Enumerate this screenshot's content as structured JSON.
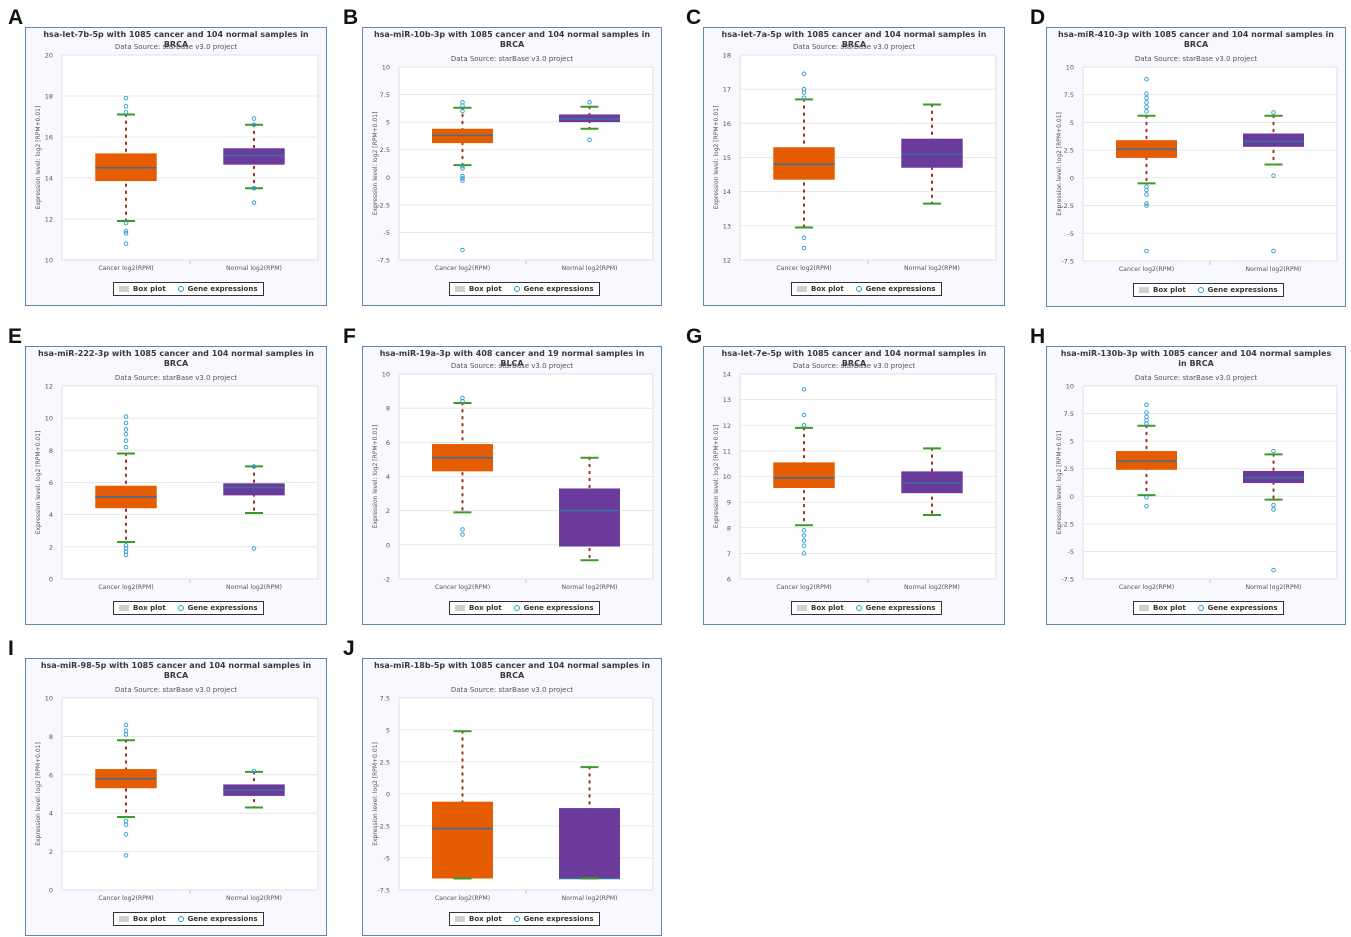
{
  "colors": {
    "cancer": "#e65c00",
    "normal": "#6a3b9c",
    "median": "#3d6d9a",
    "whisker": "#3a9a2a",
    "dots": "#a0301a",
    "points": "#2a9bd1",
    "border": "#5e86b3"
  },
  "legend": {
    "box": "Box plot",
    "points": "Gene expressions"
  },
  "chart_data": [
    {
      "letter": "A",
      "type": "box",
      "title": "hsa-let-7b-5p with 1085 cancer and 104 normal samples in BRCA",
      "subtitle": "Data Source: starBase v3.0 project",
      "ylabel": "Expression level: log2 [RPM+0.01]",
      "categories": [
        "Cancer log2(RPM)",
        "Normal log2(RPM)"
      ],
      "yticks": [
        "10",
        "12",
        "14",
        "16",
        "18",
        "20"
      ],
      "ylim": [
        10,
        20
      ],
      "boxes": [
        {
          "q1": 13.85,
          "median": 14.5,
          "q3": 15.2,
          "lower": 11.9,
          "upper": 17.1,
          "outliers": [
            10.8,
            11.3,
            11.4,
            11.8,
            17.2,
            17.5,
            17.9
          ]
        },
        {
          "q1": 14.65,
          "median": 15.1,
          "q3": 15.45,
          "lower": 13.5,
          "upper": 16.6,
          "outliers": [
            12.8,
            13.5,
            16.6,
            16.9
          ]
        }
      ]
    },
    {
      "letter": "B",
      "type": "box",
      "title": "hsa-miR-10b-3p with 1085 cancer and 104 normal samples in BRCA",
      "subtitle": "Data Source: starBase v3.0 project",
      "ylabel": "Expression level: log2 [RPM+0.01]",
      "categories": [
        "Cancer log2(RPM)",
        "Normal log2(RPM)"
      ],
      "yticks": [
        "-7.5",
        "-5",
        "-2.5",
        "0",
        "2.5",
        "5",
        "7.5",
        "10"
      ],
      "ylim": [
        -7.5,
        10
      ],
      "boxes": [
        {
          "q1": 3.1,
          "median": 3.8,
          "q3": 4.4,
          "lower": 1.1,
          "upper": 6.3,
          "outliers": [
            -6.6,
            -0.3,
            -0.1,
            0.1,
            0.8,
            1.0,
            6.0,
            6.5,
            6.8
          ]
        },
        {
          "q1": 5.0,
          "median": 5.3,
          "q3": 5.7,
          "lower": 4.4,
          "upper": 6.4,
          "outliers": [
            3.4,
            6.8
          ]
        }
      ]
    },
    {
      "letter": "C",
      "type": "box",
      "title": "hsa-let-7a-5p with 1085 cancer and 104 normal samples in BRCA",
      "subtitle": "Data Source: starBase v3.0 project",
      "ylabel": "Expression level: log2 [RPM+0.01]",
      "categories": [
        "Cancer log2(RPM)",
        "Normal log2(RPM)"
      ],
      "yticks": [
        "12",
        "13",
        "14",
        "15",
        "16",
        "17",
        "18"
      ],
      "ylim": [
        12,
        18
      ],
      "boxes": [
        {
          "q1": 14.35,
          "median": 14.8,
          "q3": 15.3,
          "lower": 12.95,
          "upper": 16.7,
          "outliers": [
            12.35,
            12.65,
            16.75,
            16.9,
            17.0,
            17.45
          ]
        },
        {
          "q1": 14.7,
          "median": 15.1,
          "q3": 15.55,
          "lower": 13.65,
          "upper": 16.55,
          "outliers": []
        }
      ]
    },
    {
      "letter": "D",
      "type": "box",
      "title": "hsa-miR-410-3p with 1085 cancer and 104 normal samples in BRCA",
      "subtitle": "Data Source: starBase v3.0 project",
      "ylabel": "Expression level: log2 [RPM+0.01]",
      "categories": [
        "Cancer log2(RPM)",
        "Normal log2(RPM)"
      ],
      "yticks": [
        "-7.5",
        "-5",
        "-2.5",
        "0",
        "2.5",
        "5",
        "7.5",
        "10"
      ],
      "ylim": [
        -7.5,
        10
      ],
      "boxes": [
        {
          "q1": 1.8,
          "median": 2.6,
          "q3": 3.4,
          "lower": -0.5,
          "upper": 5.6,
          "outliers": [
            -6.6,
            -2.5,
            -2.3,
            -1.5,
            -1.1,
            -0.8,
            6.0,
            6.4,
            6.8,
            7.2,
            7.6,
            8.9
          ]
        },
        {
          "q1": 2.8,
          "median": 3.3,
          "q3": 4.0,
          "lower": 1.2,
          "upper": 5.6,
          "outliers": [
            -6.6,
            0.2,
            5.9
          ]
        }
      ]
    },
    {
      "letter": "E",
      "type": "box",
      "title": "hsa-miR-222-3p with 1085 cancer and 104 normal samples in BRCA",
      "subtitle": "Data Source: starBase v3.0 project",
      "ylabel": "Expression level: log2 [RPM+0.01]",
      "categories": [
        "Cancer log2(RPM)",
        "Normal log2(RPM)"
      ],
      "yticks": [
        "0",
        "2",
        "4",
        "6",
        "8",
        "10",
        "12"
      ],
      "ylim": [
        0,
        12
      ],
      "boxes": [
        {
          "q1": 4.4,
          "median": 5.1,
          "q3": 5.8,
          "lower": 2.3,
          "upper": 7.8,
          "outliers": [
            1.5,
            1.7,
            1.9,
            2.1,
            8.2,
            8.6,
            9.0,
            9.3,
            9.7,
            10.1
          ]
        },
        {
          "q1": 5.2,
          "median": 5.7,
          "q3": 5.95,
          "lower": 4.1,
          "upper": 7.0,
          "outliers": [
            1.9,
            7.0
          ]
        }
      ]
    },
    {
      "letter": "F",
      "type": "box",
      "title": "hsa-miR-19a-3p with 408 cancer and 19 normal samples in BLCA",
      "subtitle": "Data Source: starBase v3.0 project",
      "ylabel": "Expression level: log2 [RPM+0.01]",
      "categories": [
        "Cancer log2(RPM)",
        "Normal log2(RPM)"
      ],
      "yticks": [
        "-2",
        "0",
        "2",
        "4",
        "6",
        "8",
        "10"
      ],
      "ylim": [
        -2,
        10
      ],
      "boxes": [
        {
          "q1": 4.3,
          "median": 5.1,
          "q3": 5.9,
          "lower": 1.9,
          "upper": 8.3,
          "outliers": [
            0.6,
            0.9,
            8.4,
            8.6
          ]
        },
        {
          "q1": -0.1,
          "median": 2.0,
          "q3": 3.3,
          "lower": -0.9,
          "upper": 5.1,
          "outliers": []
        }
      ]
    },
    {
      "letter": "G",
      "type": "box",
      "title": "hsa-let-7e-5p with 1085 cancer and 104 normal samples in BRCA",
      "subtitle": "Data Source: starBase v3.0 project",
      "ylabel": "Expression level: log2 [RPM+0.01]",
      "categories": [
        "Cancer log2(RPM)",
        "Normal log2(RPM)"
      ],
      "yticks": [
        "6",
        "7",
        "8",
        "9",
        "10",
        "11",
        "12",
        "13",
        "14"
      ],
      "ylim": [
        6,
        14
      ],
      "boxes": [
        {
          "q1": 9.55,
          "median": 9.95,
          "q3": 10.55,
          "lower": 8.1,
          "upper": 11.9,
          "outliers": [
            7.0,
            7.3,
            7.5,
            7.7,
            7.9,
            12.0,
            12.4,
            13.4
          ]
        },
        {
          "q1": 9.35,
          "median": 9.75,
          "q3": 10.2,
          "lower": 8.5,
          "upper": 11.1,
          "outliers": []
        }
      ]
    },
    {
      "letter": "H",
      "type": "box",
      "title": "hsa-miR-130b-3p with 1085 cancer and 104 normal samples in BRCA",
      "subtitle": "Data Source: starBase v3.0 project",
      "ylabel": "Expression level: log2 [RPM+0.01]",
      "categories": [
        "Cancer log2(RPM)",
        "Normal log2(RPM)"
      ],
      "yticks": [
        "-7.5",
        "-5",
        "-2.5",
        "0",
        "2.5",
        "5",
        "7.5",
        "10"
      ],
      "ylim": [
        -7.5,
        10
      ],
      "boxes": [
        {
          "q1": 2.4,
          "median": 3.2,
          "q3": 4.1,
          "lower": 0.1,
          "upper": 6.4,
          "outliers": [
            -0.9,
            -0.1,
            6.6,
            6.9,
            7.2,
            7.6,
            8.3
          ]
        },
        {
          "q1": 1.2,
          "median": 1.7,
          "q3": 2.3,
          "lower": -0.3,
          "upper": 3.8,
          "outliers": [
            -6.7,
            -1.2,
            -0.8,
            4.1
          ]
        }
      ]
    },
    {
      "letter": "I",
      "type": "box",
      "title": "hsa-miR-98-5p with 1085 cancer and 104 normal samples in BRCA",
      "subtitle": "Data Source: starBase v3.0 project",
      "ylabel": "Expression level: log2 [RPM+0.01]",
      "categories": [
        "Cancer log2(RPM)",
        "Normal log2(RPM)"
      ],
      "yticks": [
        "0",
        "2",
        "4",
        "6",
        "8",
        "10"
      ],
      "ylim": [
        0,
        10
      ],
      "boxes": [
        {
          "q1": 5.3,
          "median": 5.8,
          "q3": 6.3,
          "lower": 3.8,
          "upper": 7.8,
          "outliers": [
            1.8,
            2.9,
            3.4,
            3.6,
            8.1,
            8.3,
            8.6
          ]
        },
        {
          "q1": 4.9,
          "median": 5.2,
          "q3": 5.5,
          "lower": 4.3,
          "upper": 6.15,
          "outliers": [
            6.2
          ]
        }
      ]
    },
    {
      "letter": "J",
      "type": "box",
      "title": "hsa-miR-18b-5p with 1085 cancer and 104 normal samples in BRCA",
      "subtitle": "Data Source: starBase v3.0 project",
      "ylabel": "Expression level: log2 [RPM+0.01]",
      "categories": [
        "Cancer log2(RPM)",
        "Normal log2(RPM)"
      ],
      "yticks": [
        "-7.5",
        "-5",
        "-2.5",
        "0",
        "2.5",
        "5",
        "7.5"
      ],
      "ylim": [
        -7.5,
        7.5
      ],
      "boxes": [
        {
          "q1": -6.6,
          "median": -2.7,
          "q3": -0.6,
          "lower": -6.6,
          "upper": 4.9,
          "outliers": []
        },
        {
          "q1": -6.6,
          "median": -6.6,
          "q3": -1.1,
          "lower": -6.6,
          "upper": 2.1,
          "outliers": []
        }
      ]
    }
  ]
}
